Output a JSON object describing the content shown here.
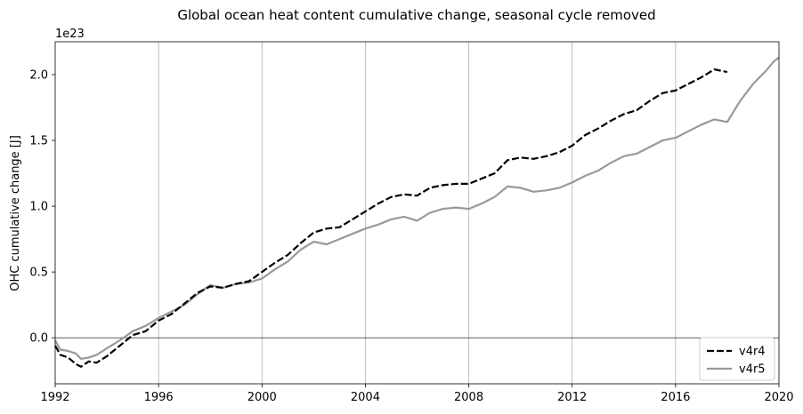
{
  "chart_data": {
    "type": "line",
    "title": "Global ocean heat content cumulative change, seasonal cycle removed",
    "xlabel": "",
    "ylabel": "OHC cumulative change [J]",
    "y_offset_label": "1e23",
    "xlim": [
      1992,
      2020
    ],
    "ylim": [
      -0.35,
      2.25
    ],
    "x_ticks": [
      1992,
      1996,
      2000,
      2004,
      2008,
      2012,
      2016,
      2020
    ],
    "y_ticks": [
      0.0,
      0.5,
      1.0,
      1.5,
      2.0
    ],
    "y_tick_labels": [
      "0.0",
      "0.5",
      "1.0",
      "1.5",
      "2.0"
    ],
    "grid": "vertical",
    "zero_line": true,
    "legend_position": "lower-right",
    "series": [
      {
        "name": "v4r4",
        "color": "#000000",
        "style": "dashed",
        "x": [
          1992.0,
          1992.2,
          1992.5,
          1992.8,
          1993.0,
          1993.3,
          1993.6,
          1994.0,
          1994.5,
          1995.0,
          1995.5,
          1996.0,
          1996.5,
          1997.0,
          1997.5,
          1998.0,
          1998.5,
          1999.0,
          1999.5,
          2000.0,
          2000.5,
          2001.0,
          2001.5,
          2002.0,
          2002.5,
          2003.0,
          2003.5,
          2004.0,
          2004.5,
          2005.0,
          2005.5,
          2006.0,
          2006.5,
          2007.0,
          2007.5,
          2008.0,
          2008.5,
          2009.0,
          2009.5,
          2010.0,
          2010.5,
          2011.0,
          2011.5,
          2012.0,
          2012.5,
          2013.0,
          2013.5,
          2014.0,
          2014.5,
          2015.0,
          2015.5,
          2016.0,
          2016.5,
          2017.0,
          2017.5,
          2018.0
        ],
        "values": [
          -0.06,
          -0.13,
          -0.15,
          -0.2,
          -0.22,
          -0.18,
          -0.19,
          -0.14,
          -0.06,
          0.02,
          0.05,
          0.13,
          0.18,
          0.26,
          0.34,
          0.39,
          0.38,
          0.41,
          0.43,
          0.5,
          0.57,
          0.63,
          0.72,
          0.8,
          0.83,
          0.84,
          0.9,
          0.96,
          1.02,
          1.07,
          1.09,
          1.08,
          1.14,
          1.16,
          1.17,
          1.17,
          1.21,
          1.25,
          1.35,
          1.37,
          1.36,
          1.38,
          1.41,
          1.46,
          1.54,
          1.59,
          1.65,
          1.7,
          1.73,
          1.8,
          1.86,
          1.88,
          1.93,
          1.98,
          2.04,
          2.02
        ]
      },
      {
        "name": "v4r5",
        "color": "#999999",
        "style": "solid",
        "x": [
          1992.0,
          1992.2,
          1992.5,
          1992.8,
          1993.0,
          1993.3,
          1993.6,
          1994.0,
          1994.5,
          1995.0,
          1995.5,
          1996.0,
          1996.5,
          1997.0,
          1997.5,
          1998.0,
          1998.5,
          1999.0,
          1999.5,
          2000.0,
          2000.5,
          2001.0,
          2001.5,
          2002.0,
          2002.5,
          2003.0,
          2003.5,
          2004.0,
          2004.5,
          2005.0,
          2005.5,
          2006.0,
          2006.5,
          2007.0,
          2007.5,
          2008.0,
          2008.5,
          2009.0,
          2009.5,
          2010.0,
          2010.5,
          2011.0,
          2011.5,
          2012.0,
          2012.5,
          2013.0,
          2013.5,
          2014.0,
          2014.5,
          2015.0,
          2015.5,
          2016.0,
          2016.5,
          2017.0,
          2017.5,
          2018.0,
          2018.5,
          2019.0,
          2019.5,
          2019.8,
          2020.0
        ],
        "values": [
          -0.02,
          -0.09,
          -0.1,
          -0.12,
          -0.16,
          -0.15,
          -0.13,
          -0.08,
          -0.02,
          0.05,
          0.09,
          0.15,
          0.2,
          0.25,
          0.33,
          0.4,
          0.38,
          0.41,
          0.42,
          0.45,
          0.52,
          0.58,
          0.67,
          0.73,
          0.71,
          0.75,
          0.79,
          0.83,
          0.86,
          0.9,
          0.92,
          0.89,
          0.95,
          0.98,
          0.99,
          0.98,
          1.02,
          1.07,
          1.15,
          1.14,
          1.11,
          1.12,
          1.14,
          1.18,
          1.23,
          1.27,
          1.33,
          1.38,
          1.4,
          1.45,
          1.5,
          1.52,
          1.57,
          1.62,
          1.66,
          1.64,
          1.8,
          1.93,
          2.03,
          2.1,
          2.13
        ]
      }
    ]
  }
}
